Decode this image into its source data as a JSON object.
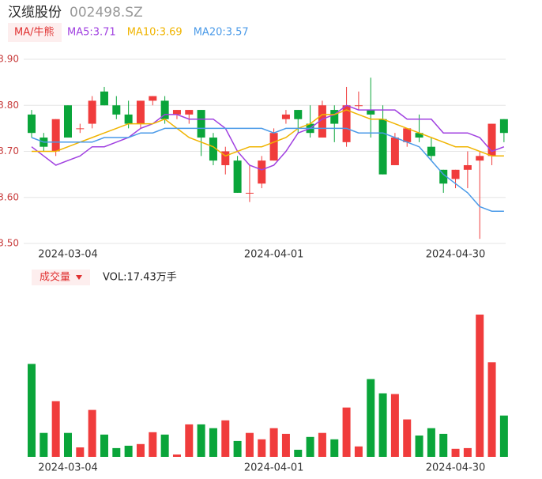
{
  "chart_data": [
    {
      "type": "candlestick",
      "title": "汉缆股份",
      "subtitle": "002498.SZ",
      "indicator_button": "MA/牛熊",
      "up_color": "#f03c3c",
      "down_color": "#0aa53a",
      "categories": [
        null,
        null,
        null,
        "2024-03-04",
        null,
        null,
        null,
        null,
        null,
        null,
        null,
        null,
        null,
        null,
        null,
        null,
        null,
        null,
        null,
        null,
        "2024-04-01",
        null,
        null,
        null,
        null,
        null,
        null,
        null,
        null,
        null,
        null,
        null,
        null,
        null,
        null,
        "2024-04-30",
        null,
        null,
        null,
        null
      ],
      "open": [
        3.78,
        3.73,
        3.7,
        3.8,
        3.75,
        3.76,
        3.83,
        3.8,
        3.78,
        3.76,
        3.81,
        3.81,
        3.78,
        3.78,
        3.79,
        3.73,
        3.67,
        3.68,
        3.61,
        3.63,
        3.68,
        3.77,
        3.79,
        3.76,
        3.73,
        3.79,
        3.72,
        3.8,
        3.79,
        3.77,
        3.67,
        3.72,
        3.74,
        3.71,
        3.66,
        3.64,
        3.66,
        3.68,
        3.69,
        3.77
      ],
      "high": [
        3.79,
        3.74,
        3.77,
        3.8,
        3.76,
        3.82,
        3.84,
        3.82,
        3.81,
        3.81,
        3.82,
        3.82,
        3.79,
        3.79,
        3.79,
        3.74,
        3.71,
        3.69,
        3.67,
        3.69,
        3.75,
        3.79,
        3.79,
        3.8,
        3.81,
        3.8,
        3.84,
        3.83,
        3.86,
        3.8,
        3.74,
        3.75,
        3.78,
        3.73,
        3.66,
        3.66,
        3.7,
        3.7,
        3.76,
        3.77
      ],
      "low": [
        3.73,
        3.7,
        3.69,
        3.73,
        3.74,
        3.75,
        3.8,
        3.77,
        3.75,
        3.75,
        3.8,
        3.76,
        3.77,
        3.76,
        3.69,
        3.67,
        3.65,
        3.61,
        3.59,
        3.62,
        3.68,
        3.76,
        3.74,
        3.73,
        3.73,
        3.72,
        3.71,
        3.79,
        3.73,
        3.65,
        3.67,
        3.71,
        3.72,
        3.68,
        3.61,
        3.62,
        3.62,
        3.51,
        3.67,
        3.72
      ],
      "close": [
        3.74,
        3.71,
        3.77,
        3.73,
        3.75,
        3.81,
        3.8,
        3.78,
        3.76,
        3.81,
        3.82,
        3.77,
        3.79,
        3.79,
        3.73,
        3.68,
        3.7,
        3.61,
        3.61,
        3.68,
        3.74,
        3.78,
        3.77,
        3.74,
        3.8,
        3.76,
        3.8,
        3.8,
        3.78,
        3.65,
        3.73,
        3.75,
        3.73,
        3.69,
        3.63,
        3.66,
        3.67,
        3.69,
        3.76,
        3.74
      ],
      "series": [
        {
          "name": "MA5:3.71",
          "color": "#a040e0",
          "values": [
            3.71,
            3.69,
            3.67,
            3.68,
            3.69,
            3.71,
            3.71,
            3.72,
            3.73,
            3.75,
            3.76,
            3.78,
            3.78,
            3.77,
            3.77,
            3.77,
            3.75,
            3.7,
            3.67,
            3.66,
            3.67,
            3.7,
            3.74,
            3.75,
            3.77,
            3.78,
            3.8,
            3.79,
            3.79,
            3.79,
            3.79,
            3.77,
            3.77,
            3.77,
            3.74,
            3.74,
            3.74,
            3.73,
            3.7,
            3.71
          ]
        },
        {
          "name": "MA10:3.69",
          "color": "#f0b400",
          "values": [
            3.7,
            3.7,
            3.7,
            3.71,
            3.72,
            3.73,
            3.74,
            3.75,
            3.76,
            3.76,
            3.76,
            3.77,
            3.75,
            3.73,
            3.72,
            3.71,
            3.69,
            3.7,
            3.71,
            3.71,
            3.72,
            3.73,
            3.75,
            3.76,
            3.78,
            3.78,
            3.79,
            3.78,
            3.77,
            3.77,
            3.76,
            3.75,
            3.74,
            3.73,
            3.72,
            3.71,
            3.71,
            3.7,
            3.69,
            3.69
          ]
        },
        {
          "name": "MA20:3.57",
          "color": "#4a9ae8",
          "values": [
            3.73,
            3.72,
            3.72,
            3.72,
            3.72,
            3.72,
            3.73,
            3.73,
            3.73,
            3.74,
            3.74,
            3.75,
            3.75,
            3.75,
            3.75,
            3.75,
            3.75,
            3.75,
            3.75,
            3.75,
            3.74,
            3.75,
            3.75,
            3.75,
            3.75,
            3.75,
            3.75,
            3.74,
            3.74,
            3.74,
            3.73,
            3.72,
            3.71,
            3.68,
            3.65,
            3.63,
            3.61,
            3.58,
            3.57,
            3.57
          ]
        }
      ],
      "ylim": [
        3.5,
        3.9
      ],
      "yticks": [
        {
          "value": 3.5,
          "label": "3.50"
        },
        {
          "value": 3.6,
          "label": "3.60"
        },
        {
          "value": 3.7,
          "label": "3.70"
        },
        {
          "value": 3.8,
          "label": "3.80"
        },
        {
          "value": 3.9,
          "label": "3.90"
        }
      ],
      "grid": true
    },
    {
      "type": "bar",
      "title": "成交量",
      "subtitle": "VOL:17.43万手",
      "up_color": "#f03c3c",
      "down_color": "#0aa53a",
      "categories": [
        null,
        null,
        null,
        "2024-03-04",
        null,
        null,
        null,
        null,
        null,
        null,
        null,
        null,
        null,
        null,
        null,
        null,
        null,
        null,
        null,
        null,
        "2024-04-01",
        null,
        null,
        null,
        null,
        null,
        null,
        null,
        null,
        null,
        null,
        null,
        null,
        null,
        null,
        "2024-04-30",
        null,
        null,
        null,
        null
      ],
      "values": [
        39.2,
        10.1,
        23.5,
        10.1,
        4.0,
        19.8,
        9.4,
        3.7,
        4.7,
        5.4,
        10.4,
        9.4,
        1.0,
        13.7,
        13.7,
        12.1,
        15.4,
        6.7,
        10.1,
        7.4,
        12.1,
        9.7,
        3.0,
        8.4,
        10.1,
        7.4,
        20.8,
        4.4,
        32.8,
        26.8,
        26.5,
        15.8,
        9.0,
        12.1,
        9.7,
        3.4,
        3.7,
        60.0,
        39.9,
        17.43
      ]
    }
  ]
}
